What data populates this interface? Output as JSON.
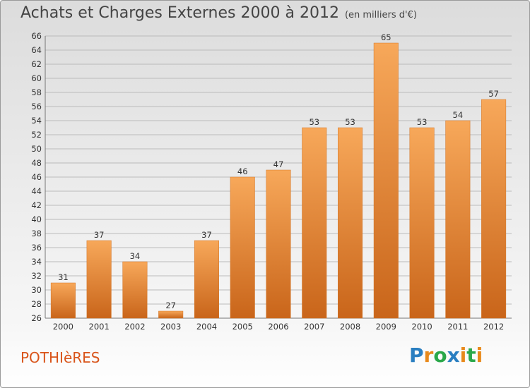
{
  "header": {
    "title": "Achats et Charges Externes 2000 à 2012",
    "unit": "(en milliers d'€)"
  },
  "footer": {
    "city": "POTHIèRES",
    "logo": {
      "letters": [
        "P",
        "r",
        "o",
        "x",
        "i",
        "t",
        "i"
      ],
      "colors": [
        "#2a7fc1",
        "#e8891a",
        "#2aa84a",
        "#2a7fc1",
        "#e8891a",
        "#2aa84a",
        "#e8891a"
      ]
    }
  },
  "colors": {
    "bar_light": "#f7a85a",
    "bar_dark": "#c9651a",
    "grid": "#bbbbbb",
    "city": "#d9541a"
  },
  "chart_data": {
    "type": "bar",
    "title": "Achats et Charges Externes 2000 à 2012",
    "subtitle": "(en milliers d'€)",
    "categories": [
      "2000",
      "2001",
      "2002",
      "2003",
      "2004",
      "2005",
      "2006",
      "2007",
      "2008",
      "2009",
      "2010",
      "2011",
      "2012"
    ],
    "values": [
      31,
      37,
      34,
      27,
      37,
      46,
      47,
      53,
      53,
      65,
      53,
      54,
      57
    ],
    "ylim": [
      26,
      66
    ],
    "yticks": [
      26,
      28,
      30,
      32,
      34,
      36,
      38,
      40,
      42,
      44,
      46,
      48,
      50,
      52,
      54,
      56,
      58,
      60,
      62,
      64,
      66
    ],
    "grid": "horizontal",
    "xlabel": "",
    "ylabel": ""
  }
}
